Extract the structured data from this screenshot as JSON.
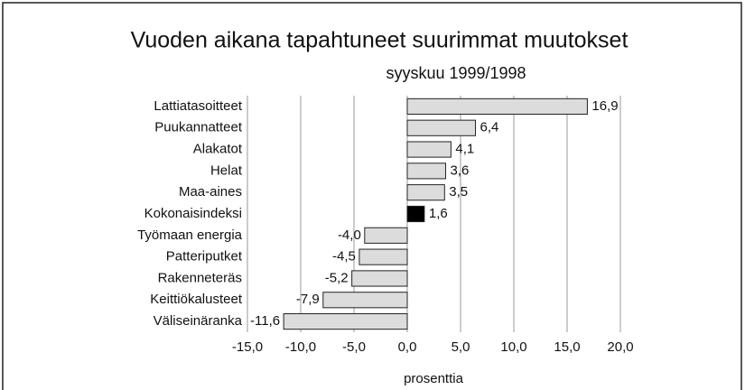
{
  "chart_data": {
    "type": "bar",
    "orientation": "horizontal",
    "title": "Vuoden aikana tapahtuneet suurimmat muutokset",
    "subtitle": "syyskuu 1999/1998",
    "xlabel": "prosenttia",
    "categories": [
      "Lattiatasoitteet",
      "Puukannatteet",
      "Alakatot",
      "Helat",
      "Maa-aines",
      "Kokonaisindeksi",
      "Työmaan energia",
      "Patteriputket",
      "Rakenneteräs",
      "Keittiökalusteet",
      "Väliseinäranka"
    ],
    "values": [
      16.9,
      6.4,
      4.1,
      3.6,
      3.5,
      1.6,
      -4.0,
      -4.5,
      -5.2,
      -7.9,
      -11.6
    ],
    "value_labels": [
      "16,9",
      "6,4",
      "4,1",
      "3,6",
      "3,5",
      "1,6",
      "-4,0",
      "-4,5",
      "-5,2",
      "-7,9",
      "-11,6"
    ],
    "colors": [
      "#dcdcdc",
      "#dcdcdc",
      "#dcdcdc",
      "#dcdcdc",
      "#dcdcdc",
      "#000000",
      "#dcdcdc",
      "#dcdcdc",
      "#dcdcdc",
      "#dcdcdc",
      "#dcdcdc"
    ],
    "xlim": [
      -15,
      20
    ],
    "xticks": [
      {
        "value": -15,
        "label": "-15,0"
      },
      {
        "value": -10,
        "label": "-10,0"
      },
      {
        "value": -5,
        "label": "-5,0"
      },
      {
        "value": 0,
        "label": "0,0"
      },
      {
        "value": 5,
        "label": "5,0"
      },
      {
        "value": 10,
        "label": "10,0"
      },
      {
        "value": 15,
        "label": "15,0"
      },
      {
        "value": 20,
        "label": "20,0"
      }
    ],
    "grid": true
  }
}
